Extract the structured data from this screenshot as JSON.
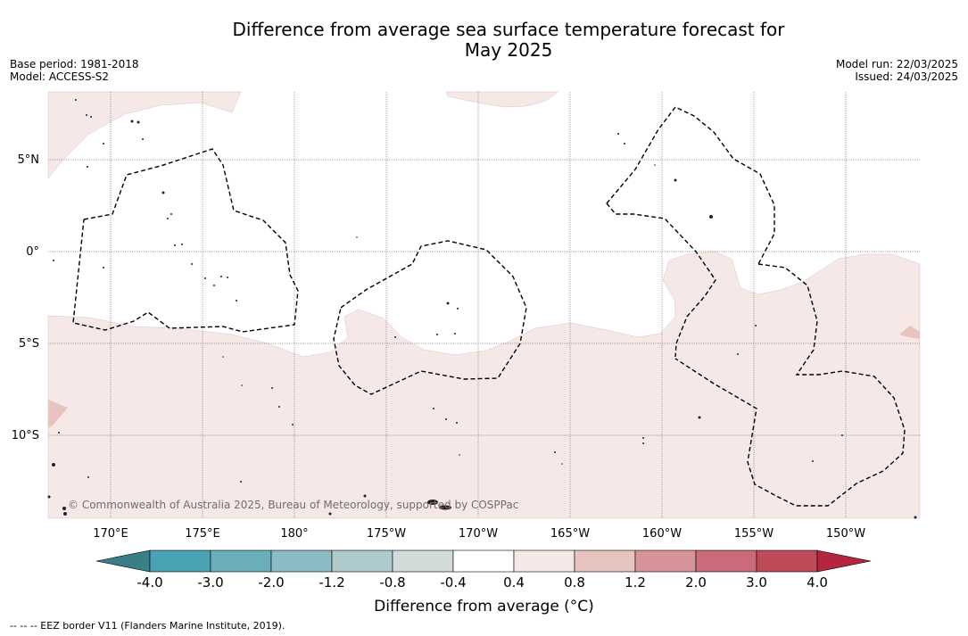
{
  "title_line1": "Difference from average sea surface temperature forecast for",
  "title_line2": "May 2025",
  "meta_left": {
    "base_period": "Base period: 1981-2018",
    "model": "Model: ACCESS-S2"
  },
  "meta_right": {
    "model_run": "Model run: 22/03/2025",
    "issued": "Issued: 24/03/2025"
  },
  "map": {
    "lat_labels": [
      "5°N",
      "0°",
      "5°S",
      "10°S"
    ],
    "lon_labels": [
      "170°E",
      "175°E",
      "180°",
      "175°W",
      "170°W",
      "165°W",
      "160°W",
      "155°W",
      "150°W"
    ],
    "copyright": "© Commonwealth of Australia 2025, Bureau of Meteorology, supported by COSPPac"
  },
  "colorbar": {
    "ticks": [
      "-4.0",
      "-3.0",
      "-2.0",
      "-1.2",
      "-0.8",
      "-0.4",
      "0.4",
      "0.8",
      "1.2",
      "2.0",
      "3.0",
      "4.0"
    ],
    "colors": [
      "#3a7f87",
      "#4aa3b5",
      "#6aaebb",
      "#8bbcc6",
      "#aecacd",
      "#d2dada",
      "#ffffff",
      "#f5e8e6",
      "#e8c4bf",
      "#d6939a",
      "#cb6a78",
      "#bf4a5a",
      "#b32540"
    ],
    "label": "Difference from average (°C)"
  },
  "footer": "-- -- -- EEZ border V11 (Flanders Marine Institute, 2019)."
}
